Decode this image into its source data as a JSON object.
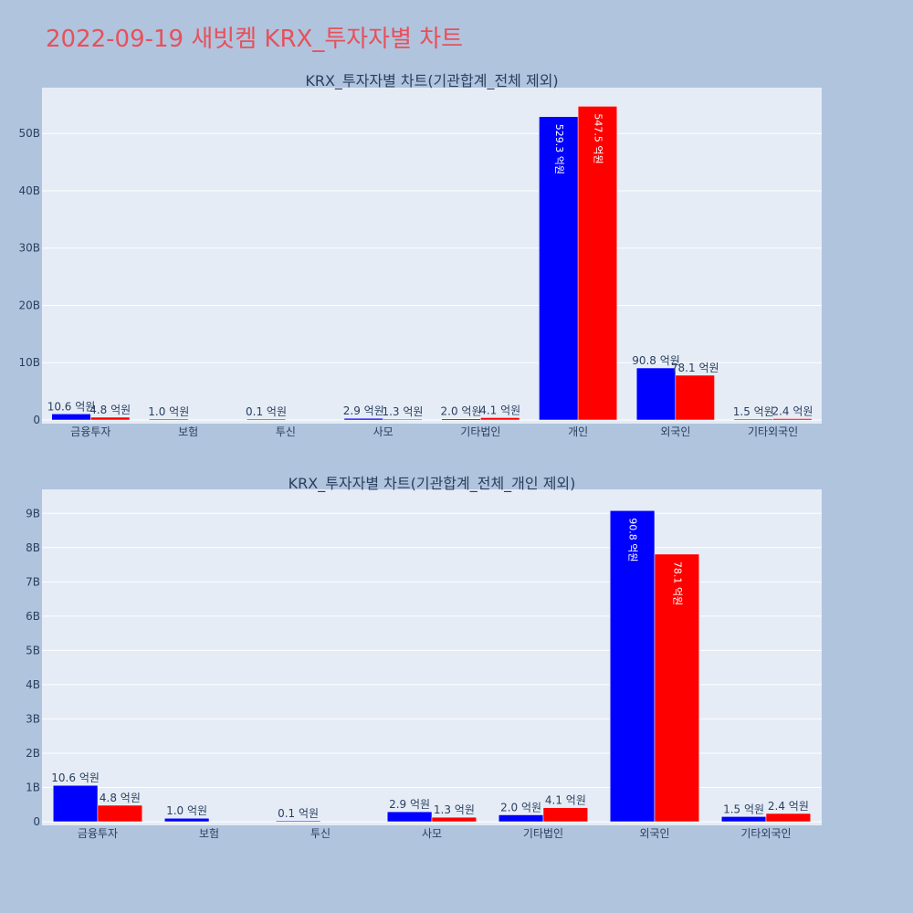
{
  "page": {
    "title": "2022-09-19 새빗켐 KRX_투자자별 차트"
  },
  "colors": {
    "background": "#b0c4de",
    "plot_bg": "#e5ecf6",
    "title": "#e8505b",
    "buy": "#0000ff",
    "sell": "#ff0000"
  },
  "chart_data": [
    {
      "type": "bar",
      "title": "KRX_투자자별 차트(기관합계_전체 제외)",
      "categories": [
        "금융투자",
        "보험",
        "투신",
        "사모",
        "기타법인",
        "개인",
        "외국인",
        "기타외국인"
      ],
      "ylim": [
        0,
        58
      ],
      "yticks": [
        0,
        10,
        20,
        30,
        40,
        50
      ],
      "ytick_labels": [
        "0",
        "10B",
        "20B",
        "30B",
        "40B",
        "50B"
      ],
      "grid": true,
      "series": [
        {
          "color": "#0000ff",
          "values": [
            1.06,
            0.1,
            0.01,
            0.29,
            0.2,
            52.93,
            9.08,
            0.15
          ],
          "labels": [
            "10.6 억원",
            "1.0 억원",
            "0.1 억원",
            "2.9 억원",
            "2.0 억원",
            "529.3 억원",
            "90.8 억원",
            "1.5 억원"
          ]
        },
        {
          "color": "#ff0000",
          "values": [
            0.48,
            0,
            0,
            0.13,
            0.41,
            54.75,
            7.81,
            0.24
          ],
          "labels": [
            "4.8 억원",
            "",
            "",
            "1.3 억원",
            "4.1 억원",
            "547.5 억원",
            "78.1 억원",
            "2.4 억원"
          ]
        }
      ]
    },
    {
      "type": "bar",
      "title": "KRX_투자자별 차트(기관합계_전체_개인 제외)",
      "categories": [
        "금융투자",
        "보험",
        "투신",
        "사모",
        "기타법인",
        "외국인",
        "기타외국인"
      ],
      "ylim": [
        0,
        9.7
      ],
      "yticks": [
        0,
        1,
        2,
        3,
        4,
        5,
        6,
        7,
        8,
        9
      ],
      "ytick_labels": [
        "0",
        "1B",
        "2B",
        "3B",
        "4B",
        "5B",
        "6B",
        "7B",
        "8B",
        "9B"
      ],
      "grid": true,
      "series": [
        {
          "color": "#0000ff",
          "values": [
            1.06,
            0.1,
            0.01,
            0.29,
            0.2,
            9.08,
            0.15
          ],
          "labels": [
            "10.6 억원",
            "1.0 억원",
            "0.1 억원",
            "2.9 억원",
            "2.0 억원",
            "90.8 억원",
            "1.5 억원"
          ]
        },
        {
          "color": "#ff0000",
          "values": [
            0.48,
            0,
            0,
            0.13,
            0.41,
            7.81,
            0.24
          ],
          "labels": [
            "4.8 억원",
            "",
            "",
            "1.3 억원",
            "4.1 억원",
            "78.1 억원",
            "2.4 억원"
          ]
        }
      ]
    }
  ]
}
